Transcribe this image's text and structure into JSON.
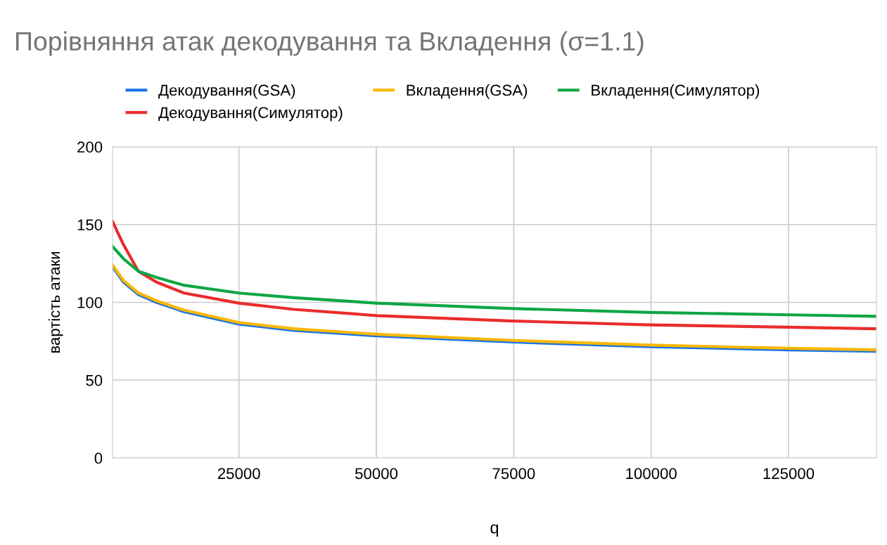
{
  "chart_data": {
    "type": "line",
    "title": "Порівняння атак декодування та Вкладення (σ=1.1)",
    "xlabel": "q",
    "ylabel": "вартість атаки",
    "x": [
      2000,
      4000,
      6700,
      10000,
      15000,
      25000,
      35000,
      50000,
      75000,
      100000,
      125000,
      141000
    ],
    "series": [
      {
        "name": "Декодування(GSA)",
        "color": "#1a73e8",
        "values": [
          123,
          113,
          105,
          100,
          94,
          86,
          82,
          78.5,
          74.5,
          71.5,
          69.5,
          68.5
        ]
      },
      {
        "name": "Декодування(Симулятор)",
        "color": "#ea2c2c",
        "values": [
          152,
          137,
          120,
          113,
          106,
          99.5,
          95.5,
          91.5,
          88,
          85.5,
          84,
          83
        ]
      },
      {
        "name": "Вкладення(GSA)",
        "color": "#f9b800",
        "values": [
          124,
          114,
          106,
          101,
          95,
          87,
          83,
          79.5,
          75.5,
          72.5,
          70.5,
          69.5
        ]
      },
      {
        "name": "Вкладення(Симулятор)",
        "color": "#0ea643",
        "values": [
          136,
          128,
          120,
          116,
          111,
          106,
          103,
          99.5,
          96,
          93.5,
          92,
          91
        ]
      }
    ],
    "xlim": [
      2000,
      141000
    ],
    "ylim": [
      0,
      200
    ],
    "xticks": [
      25000,
      50000,
      75000,
      100000,
      125000
    ],
    "yticks": [
      0,
      50,
      100,
      150,
      200
    ],
    "grid": true,
    "legend": "top",
    "marker": "none",
    "line_style": "solid"
  }
}
